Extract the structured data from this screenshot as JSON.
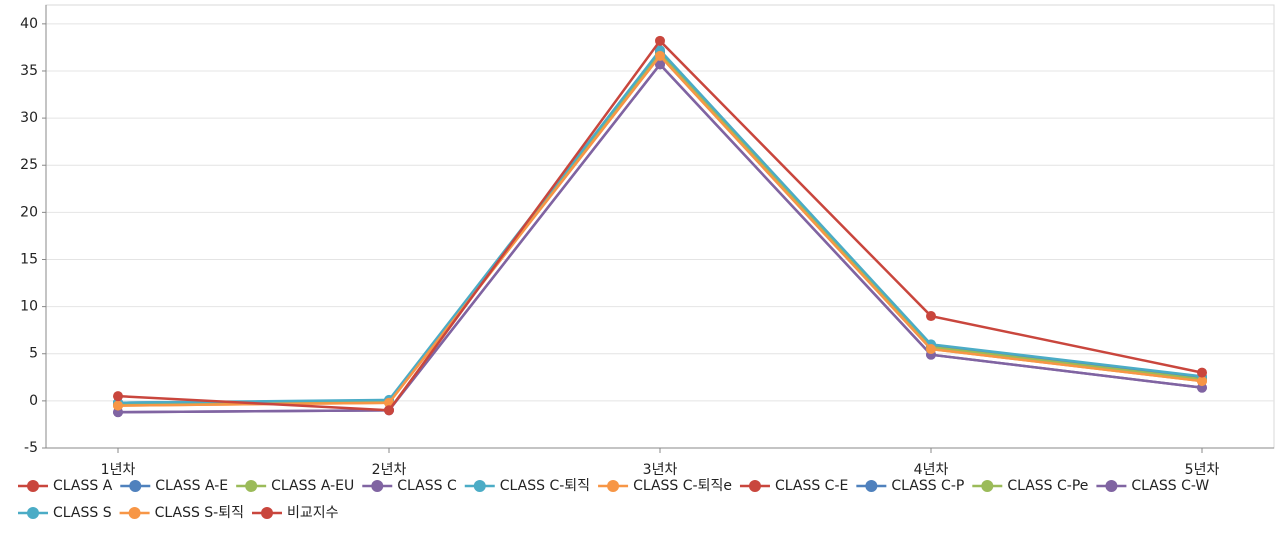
{
  "chart_data": {
    "type": "line",
    "categories": [
      "1년차",
      "2년차",
      "3년차",
      "4년차",
      "5년차"
    ],
    "series": [
      {
        "name": "CLASS A",
        "color": "#c9463d",
        "values": [
          -0.3,
          0.0,
          37.0,
          5.8,
          2.4
        ]
      },
      {
        "name": "CLASS A-E",
        "color": "#4f81bd",
        "values": [
          -0.2,
          0.0,
          37.0,
          5.9,
          2.5
        ]
      },
      {
        "name": "CLASS A-EU",
        "color": "#9bbb59",
        "values": [
          -0.3,
          -0.1,
          36.8,
          5.7,
          2.3
        ]
      },
      {
        "name": "CLASS C",
        "color": "#8064a2",
        "values": [
          -1.2,
          -1.0,
          35.7,
          4.9,
          1.4
        ]
      },
      {
        "name": "CLASS C-퇴직",
        "color": "#4bacc6",
        "values": [
          -0.2,
          0.0,
          37.1,
          5.9,
          2.5
        ]
      },
      {
        "name": "CLASS C-퇴직e",
        "color": "#f79646",
        "values": [
          -0.5,
          -0.2,
          36.6,
          5.5,
          2.1
        ]
      },
      {
        "name": "CLASS C-E",
        "color": "#c9463d",
        "values": [
          -0.3,
          0.0,
          37.0,
          5.8,
          2.4
        ]
      },
      {
        "name": "CLASS C-P",
        "color": "#4f81bd",
        "values": [
          -0.2,
          0.0,
          37.0,
          5.9,
          2.5
        ]
      },
      {
        "name": "CLASS C-Pe",
        "color": "#9bbb59",
        "values": [
          -0.3,
          -0.1,
          36.8,
          5.7,
          2.3
        ]
      },
      {
        "name": "CLASS C-W",
        "color": "#8064a2",
        "values": [
          -1.2,
          -1.0,
          35.7,
          4.9,
          1.4
        ]
      },
      {
        "name": "CLASS S",
        "color": "#4bacc6",
        "values": [
          -0.2,
          0.1,
          37.2,
          6.0,
          2.6
        ]
      },
      {
        "name": "CLASS S-퇴직",
        "color": "#f79646",
        "values": [
          -0.5,
          -0.2,
          36.6,
          5.5,
          2.1
        ]
      },
      {
        "name": "비교지수",
        "color": "#c9463d",
        "values": [
          0.5,
          -1.0,
          38.2,
          9.0,
          3.0
        ]
      }
    ],
    "ylim": [
      -5,
      42
    ],
    "yticks": [
      -5,
      0,
      5,
      10,
      15,
      20,
      25,
      30,
      35,
      40
    ],
    "grid": true,
    "legend": "bottom"
  }
}
